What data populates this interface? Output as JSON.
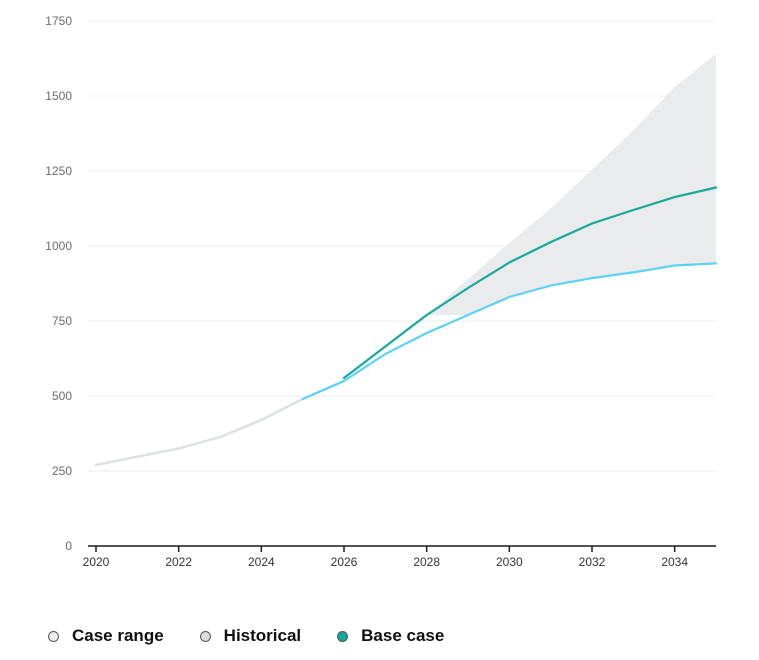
{
  "chart_data": {
    "type": "line",
    "title": "",
    "xlabel": "",
    "ylabel": "",
    "xlim": [
      2020,
      2035
    ],
    "ylim": [
      0,
      1750
    ],
    "yticks": [
      0,
      250,
      500,
      750,
      1000,
      1250,
      1500,
      1750
    ],
    "xticks": [
      2020,
      2022,
      2024,
      2026,
      2028,
      2030,
      2032,
      2034
    ],
    "grid": true,
    "legend_position": "bottom-left",
    "series": [
      {
        "name": "Historical",
        "color": "#dde1e2",
        "x": [
          2020,
          2021,
          2022,
          2023,
          2024,
          2025,
          2026
        ],
        "y": [
          270,
          298,
          325,
          363,
          420,
          490,
          550
        ]
      },
      {
        "name": "",
        "color": "#5bd2f6",
        "x": [
          2025,
          2026,
          2027,
          2028,
          2029,
          2030,
          2031,
          2032,
          2033,
          2034,
          2035
        ],
        "y": [
          490,
          550,
          640,
          710,
          770,
          830,
          868,
          893,
          912,
          935,
          942
        ]
      },
      {
        "name": "Base case",
        "color": "#16a89a",
        "x": [
          2026,
          2027,
          2028,
          2029,
          2030,
          2031,
          2032,
          2033,
          2034,
          2035
        ],
        "y": [
          560,
          665,
          770,
          860,
          945,
          1013,
          1075,
          1120,
          1163,
          1195
        ]
      }
    ],
    "range": {
      "name": "Case range",
      "color": "#e9ebec",
      "x": [
        2028,
        2029,
        2030,
        2031,
        2032,
        2033,
        2034,
        2035
      ],
      "upper": [
        770,
        890,
        1010,
        1125,
        1255,
        1385,
        1530,
        1640
      ],
      "lower": [
        770,
        770,
        830,
        868,
        893,
        912,
        935,
        942
      ]
    }
  },
  "legend": {
    "items": [
      {
        "label": "Case range",
        "color": "#eceeee"
      },
      {
        "label": "Historical",
        "color": "#dcdcdc"
      },
      {
        "label": "Base case",
        "color": "#16a89a"
      }
    ]
  }
}
